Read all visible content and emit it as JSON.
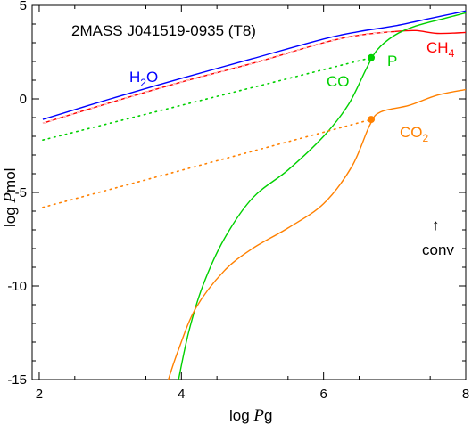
{
  "chart_data": {
    "type": "line",
    "title": "2MASS J041519-0935 (T8)",
    "xlabel": {
      "prefix": "log ",
      "italic": "P",
      "suffix": "g"
    },
    "ylabel": {
      "prefix": "log ",
      "italic": "P",
      "suffix": "mol"
    },
    "xlim": [
      1.9,
      8.0
    ],
    "ylim": [
      -15,
      5
    ],
    "xticks": [
      2,
      4,
      6,
      8
    ],
    "yticks": [
      -15,
      -10,
      -5,
      0,
      5
    ],
    "grid": false,
    "series": [
      {
        "name": "H2O",
        "label_main": "H",
        "label_sub": "2",
        "label_tail": "O",
        "color": "#0000ff",
        "style": "solid",
        "x": [
          2.05,
          3.0,
          4.0,
          5.0,
          6.0,
          6.5,
          7.0,
          7.5,
          8.0
        ],
        "y": [
          -1.1,
          0.0,
          1.1,
          2.15,
          3.2,
          3.6,
          3.9,
          4.3,
          4.7
        ]
      },
      {
        "name": "CH4",
        "label_main": "CH",
        "label_sub": "4",
        "label_tail": "",
        "color": "#ff0000",
        "style": "solid",
        "x": [
          2.05,
          3.0,
          4.0,
          5.0,
          6.0,
          6.5,
          7.0,
          7.3,
          7.6,
          8.0
        ],
        "y": [
          -1.3,
          -0.2,
          0.9,
          1.9,
          3.0,
          3.4,
          3.6,
          3.65,
          3.5,
          3.55
        ]
      },
      {
        "name": "CH4 (dashed)",
        "color": "#ff0000",
        "style": "dash-white",
        "x": [
          2.05,
          3.0,
          4.0,
          5.0,
          6.0,
          6.5,
          7.0
        ],
        "y": [
          -1.3,
          -0.2,
          0.9,
          1.9,
          3.0,
          3.4,
          3.6
        ]
      },
      {
        "name": "CO",
        "label_main": "CO",
        "label_sub": "",
        "label_tail": "",
        "color": "#00d000",
        "style": "solid",
        "x": [
          3.95,
          4.1,
          4.3,
          4.6,
          5.0,
          5.5,
          6.0,
          6.35,
          6.6,
          6.75,
          7.0,
          7.3,
          7.7,
          8.0
        ],
        "y": [
          -15.2,
          -12.5,
          -10.0,
          -7.5,
          -5.3,
          -3.8,
          -2.0,
          -0.3,
          1.6,
          2.6,
          3.4,
          3.9,
          4.3,
          4.6
        ]
      },
      {
        "name": "CO2",
        "label_main": "CO",
        "label_sub": "2",
        "label_tail": "",
        "color": "#ff8000",
        "style": "solid",
        "x": [
          3.8,
          3.95,
          4.2,
          4.6,
          5.0,
          5.5,
          6.0,
          6.4,
          6.65,
          6.8,
          7.2,
          7.6,
          8.0
        ],
        "y": [
          -15.2,
          -13.5,
          -11.2,
          -9.2,
          -8.0,
          -6.9,
          -5.6,
          -3.6,
          -1.4,
          -0.7,
          -0.35,
          0.2,
          0.5
        ]
      },
      {
        "name": "CO (dotted)",
        "color": "#00d000",
        "style": "dotted",
        "x": [
          2.05,
          6.67
        ],
        "y": [
          -2.2,
          2.2
        ]
      },
      {
        "name": "CO2 (dotted)",
        "color": "#ff8000",
        "style": "dotted",
        "x": [
          2.05,
          6.67
        ],
        "y": [
          -5.8,
          -1.1
        ]
      }
    ],
    "points": [
      {
        "x": 6.67,
        "y": 2.2,
        "color": "#00d000",
        "label": "P"
      },
      {
        "x": 6.67,
        "y": -1.1,
        "color": "#ff8000"
      }
    ],
    "annotations": {
      "conv": "conv",
      "conv_arrow": "↑"
    }
  }
}
